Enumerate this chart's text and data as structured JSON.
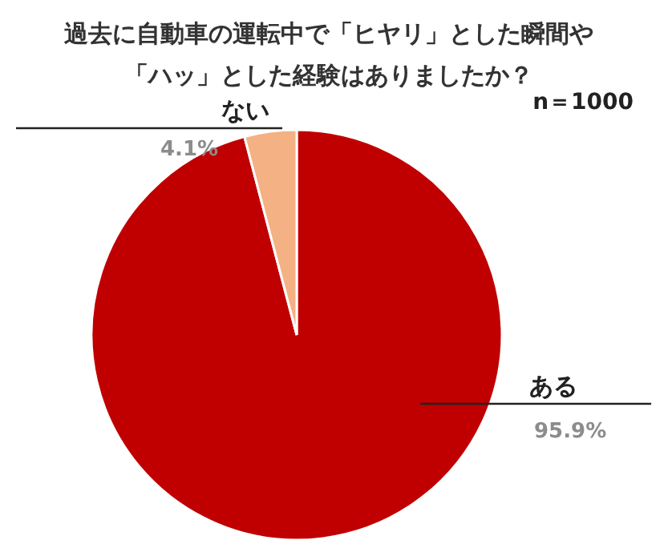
{
  "chart_data": {
    "type": "pie",
    "title": "過去に自動車の運転中で「ヒヤリ」とした瞬間や「ハッ」とした経験はありましたか？",
    "categories": [
      "ある",
      "ない"
    ],
    "values": [
      95.9,
      4.1
    ],
    "colors": [
      "#c00000",
      "#f4b183"
    ],
    "value_labels": [
      "95.9%",
      "4.1%"
    ],
    "annotations": [
      "n＝1000"
    ],
    "legend": false
  }
}
